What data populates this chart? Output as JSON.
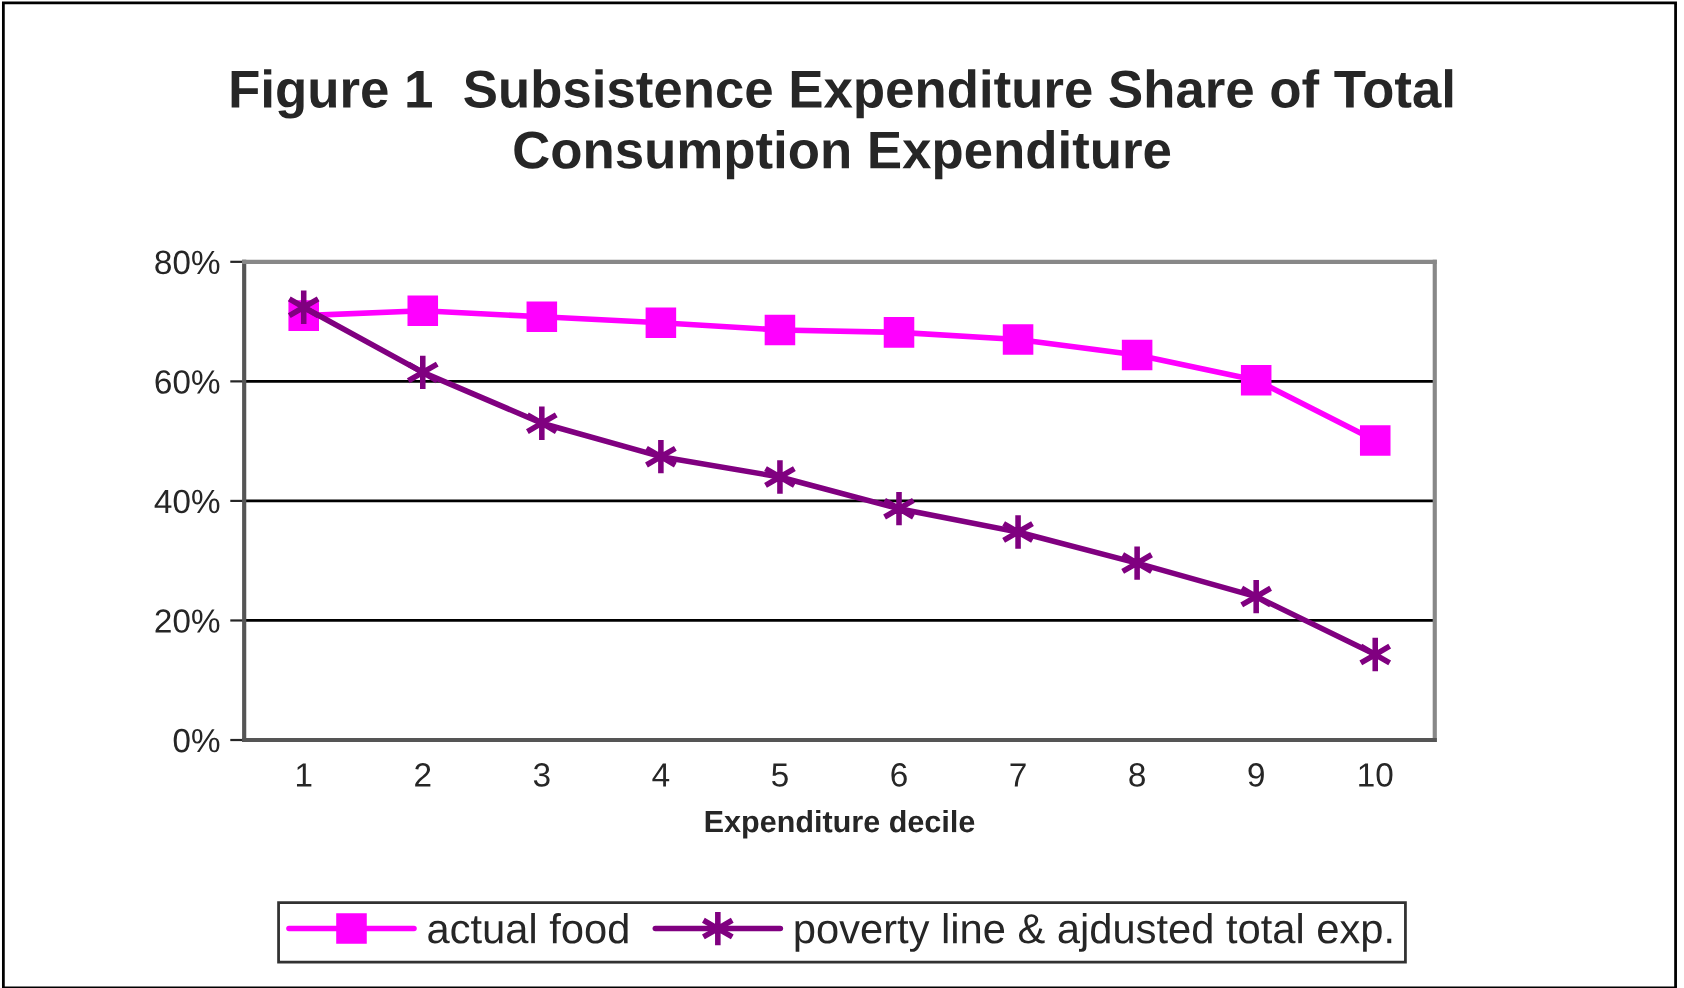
{
  "chart_data": {
    "type": "line",
    "title": "Figure 1  Subsistence Expenditure Share of Total\nConsumption Expenditure",
    "xlabel": "Expenditure decile",
    "categories": [
      "1",
      "2",
      "3",
      "4",
      "5",
      "6",
      "7",
      "8",
      "9",
      "10"
    ],
    "series": [
      {
        "name": "actual food",
        "color": "#ff00ff",
        "marker": "square",
        "values": [
          71.0,
          71.8,
          70.8,
          69.8,
          68.6,
          68.2,
          67.0,
          64.4,
          60.2,
          50.1
        ]
      },
      {
        "name": "poverty line & ajdusted total exp.",
        "color": "#800080",
        "marker": "cross",
        "values": [
          72.4,
          61.5,
          53.0,
          47.4,
          44.0,
          38.7,
          34.8,
          29.6,
          24.0,
          14.3
        ]
      }
    ],
    "ylim": [
      0,
      80
    ],
    "yticks": [
      {
        "value": 0,
        "label": "0%"
      },
      {
        "value": 20,
        "label": "20%"
      },
      {
        "value": 40,
        "label": "40%"
      },
      {
        "value": 60,
        "label": "60%"
      },
      {
        "value": 80,
        "label": "80%"
      }
    ],
    "grid": "y",
    "legend": "bottom",
    "line_style": "solid"
  }
}
